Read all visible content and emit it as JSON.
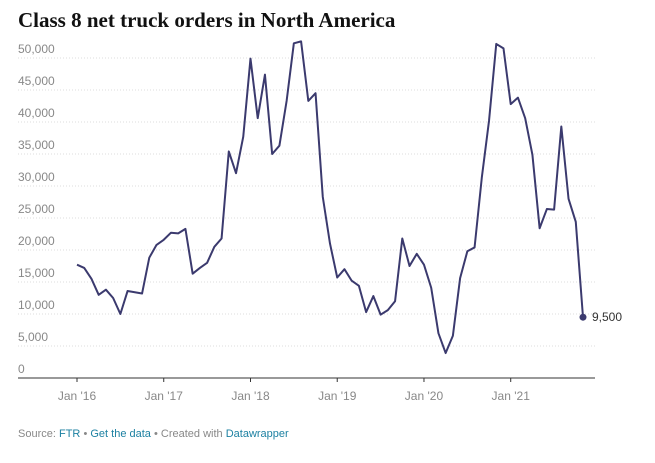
{
  "chart_data": {
    "type": "line",
    "title": "Class 8 net truck orders in North America",
    "x": [
      "2016-01",
      "2016-02",
      "2016-03",
      "2016-04",
      "2016-05",
      "2016-06",
      "2016-07",
      "2016-08",
      "2016-09",
      "2016-10",
      "2016-11",
      "2016-12",
      "2017-01",
      "2017-02",
      "2017-03",
      "2017-04",
      "2017-05",
      "2017-06",
      "2017-07",
      "2017-08",
      "2017-09",
      "2017-10",
      "2017-11",
      "2017-12",
      "2018-01",
      "2018-02",
      "2018-03",
      "2018-04",
      "2018-05",
      "2018-06",
      "2018-07",
      "2018-08",
      "2018-09",
      "2018-10",
      "2018-11",
      "2018-12",
      "2019-01",
      "2019-02",
      "2019-03",
      "2019-04",
      "2019-05",
      "2019-06",
      "2019-07",
      "2019-08",
      "2019-09",
      "2019-10",
      "2019-11",
      "2019-12",
      "2020-01",
      "2020-02",
      "2020-03",
      "2020-04",
      "2020-05",
      "2020-06",
      "2020-07",
      "2020-08",
      "2020-09",
      "2020-10",
      "2020-11",
      "2020-12",
      "2021-01",
      "2021-02",
      "2021-03",
      "2021-04",
      "2021-05",
      "2021-06",
      "2021-07",
      "2021-08",
      "2021-09",
      "2021-10",
      "2021-11"
    ],
    "series": [
      {
        "color": "#3b3a6e",
        "values": [
          17700,
          17200,
          15500,
          13000,
          13800,
          12500,
          10000,
          13600,
          13400,
          13200,
          18800,
          20800,
          21600,
          22700,
          22600,
          23300,
          16300,
          17200,
          18000,
          20500,
          21800,
          35400,
          32000,
          37700,
          49900,
          40600,
          47400,
          35000,
          36300,
          43300,
          52300,
          52600,
          43300,
          44500,
          28300,
          21000,
          15700,
          17000,
          15200,
          14400,
          10300,
          12800,
          9900,
          10600,
          12000,
          21800,
          17500,
          19400,
          17700,
          14100,
          7000,
          3900,
          6600,
          15600,
          19800,
          20400,
          31300,
          40200,
          52200,
          51500,
          42800,
          43800,
          40600,
          34900,
          23400,
          26400,
          26300,
          39300,
          28000,
          24400,
          9500
        ],
        "value_labels": [
          null,
          null,
          null,
          null,
          null,
          null,
          null,
          null,
          null,
          null,
          null,
          null,
          null,
          null,
          null,
          null,
          null,
          null,
          null,
          null,
          null,
          null,
          null,
          null,
          null,
          null,
          null,
          null,
          null,
          null,
          null,
          null,
          null,
          null,
          null,
          null,
          null,
          null,
          null,
          null,
          null,
          null,
          null,
          null,
          null,
          null,
          null,
          null,
          null,
          null,
          null,
          null,
          null,
          null,
          null,
          null,
          null,
          null,
          null,
          null,
          null,
          null,
          null,
          null,
          null,
          null,
          null,
          null,
          null,
          null,
          "9,500"
        ]
      }
    ],
    "xlim": [
      "2016-01",
      "2021-11"
    ],
    "xticks": [
      {
        "value": "2016-01",
        "label": "Jan '16"
      },
      {
        "value": "2017-01",
        "label": "Jan '17"
      },
      {
        "value": "2018-01",
        "label": "Jan '18"
      },
      {
        "value": "2019-01",
        "label": "Jan '19"
      },
      {
        "value": "2020-01",
        "label": "Jan '20"
      },
      {
        "value": "2021-01",
        "label": "Jan '21"
      }
    ],
    "ylim": [
      0,
      55000
    ],
    "yticks": [
      0,
      {
        "value": 5000,
        "label": "5,000"
      },
      {
        "value": 10000,
        "label": "10,000"
      },
      {
        "value": 15000,
        "label": "15,000"
      },
      {
        "value": 20000,
        "label": "20,000"
      },
      {
        "value": 25000,
        "label": "25,000"
      },
      {
        "value": 30000,
        "label": "30,000"
      },
      {
        "value": 35000,
        "label": "35,000"
      },
      {
        "value": 40000,
        "label": "40,000"
      },
      {
        "value": 45000,
        "label": "45,000"
      },
      {
        "value": 50000,
        "label": "50,000"
      }
    ],
    "grid": true,
    "footer": {
      "source_label": "Source:",
      "source": "FTR",
      "separator": "•",
      "get_data": "Get the data",
      "created": "Created with",
      "tool": "Datawrapper"
    }
  }
}
